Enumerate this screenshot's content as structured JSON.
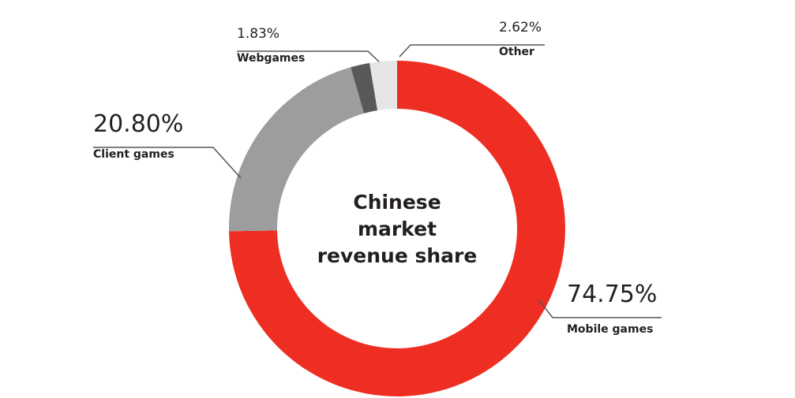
{
  "chart_data": {
    "type": "pie",
    "donut": true,
    "title": "Chinese market revenue share",
    "categories": [
      "Mobile games",
      "Client games",
      "Webgames",
      "Other"
    ],
    "values": [
      74.75,
      20.8,
      1.83,
      2.62
    ],
    "value_labels": [
      "74.75%",
      "20.80%",
      "1.83%",
      "2.62%"
    ],
    "colors": [
      "#ee2e22",
      "#9d9d9f",
      "#58595b",
      "#e6e6e7"
    ]
  }
}
